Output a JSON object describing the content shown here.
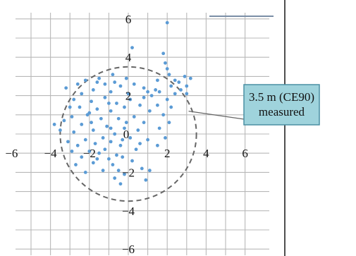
{
  "chart_data": {
    "type": "scatter",
    "title": "",
    "xlabel": "",
    "ylabel": "",
    "xlim": [
      -6,
      6
    ],
    "ylim": [
      -6,
      6
    ],
    "x_ticks": [
      -6,
      -4,
      -2,
      0,
      2,
      4,
      6
    ],
    "y_ticks": [
      -6,
      -4,
      -2,
      0,
      2,
      4,
      6
    ],
    "x_tick_labels": [
      "−6",
      "−4",
      "−2",
      "0",
      "2",
      "4",
      "6"
    ],
    "y_tick_labels": [
      "−6",
      "−4",
      "−2",
      "0",
      "2",
      "4",
      "6"
    ],
    "grid": true,
    "point_color": "#5b9bd5",
    "circle": {
      "center": [
        0,
        0
      ],
      "radius": 3.5,
      "style": "dashed",
      "color": "#666666"
    },
    "annotation": {
      "lines": [
        "3.5 m (CE90)",
        "measured"
      ],
      "box_fill": "#9fd3dc",
      "box_border": "#4a8fa3",
      "points_to": [
        3.1,
        1.3
      ]
    },
    "points": [
      {
        "x": 2.0,
        "y": 5.8
      },
      {
        "x": 0.2,
        "y": 4.5
      },
      {
        "x": 1.8,
        "y": 4.2
      },
      {
        "x": 1.9,
        "y": 3.7
      },
      {
        "x": 2.0,
        "y": 3.4
      },
      {
        "x": 2.1,
        "y": 3.1
      },
      {
        "x": 2.9,
        "y": 3.0
      },
      {
        "x": 3.2,
        "y": 2.9
      },
      {
        "x": 2.4,
        "y": 2.8
      },
      {
        "x": 2.6,
        "y": 2.7
      },
      {
        "x": 1.5,
        "y": 2.8
      },
      {
        "x": 2.2,
        "y": 2.5
      },
      {
        "x": 3.0,
        "y": 2.5
      },
      {
        "x": 2.7,
        "y": 2.3
      },
      {
        "x": 1.4,
        "y": 2.3
      },
      {
        "x": 0.8,
        "y": 2.4
      },
      {
        "x": 1.0,
        "y": 2.2
      },
      {
        "x": 1.6,
        "y": 2.2
      },
      {
        "x": 2.4,
        "y": 2.1
      },
      {
        "x": 3.0,
        "y": 2.1
      },
      {
        "x": 1.2,
        "y": 2.0
      },
      {
        "x": 2.0,
        "y": 1.8
      },
      {
        "x": 1.5,
        "y": 1.5
      },
      {
        "x": 2.2,
        "y": 1.4
      },
      {
        "x": 1.8,
        "y": 1.0
      },
      {
        "x": 1.1,
        "y": 1.2
      },
      {
        "x": 2.1,
        "y": 0.6
      },
      {
        "x": 1.6,
        "y": 0.3
      },
      {
        "x": 1.9,
        "y": -0.2
      },
      {
        "x": 1.5,
        "y": -0.6
      },
      {
        "x": 1.0,
        "y": -0.3
      },
      {
        "x": 0.8,
        "y": 0.6
      },
      {
        "x": 0.6,
        "y": 1.5
      },
      {
        "x": 0.3,
        "y": 2.6
      },
      {
        "x": -0.1,
        "y": 2.9
      },
      {
        "x": -0.8,
        "y": 3.1
      },
      {
        "x": -0.4,
        "y": 2.5
      },
      {
        "x": 0.1,
        "y": 1.8
      },
      {
        "x": -0.2,
        "y": 1.4
      },
      {
        "x": 0.3,
        "y": 0.9
      },
      {
        "x": 0.5,
        "y": 0.2
      },
      {
        "x": 0.1,
        "y": -0.2
      },
      {
        "x": -0.2,
        "y": 0.3
      },
      {
        "x": -0.5,
        "y": 0.8
      },
      {
        "x": -0.6,
        "y": 1.6
      },
      {
        "x": -0.9,
        "y": 2.2
      },
      {
        "x": -1.2,
        "y": 2.6
      },
      {
        "x": -1.5,
        "y": 2.9
      },
      {
        "x": -2.2,
        "y": 2.8
      },
      {
        "x": -2.6,
        "y": 2.6
      },
      {
        "x": -3.2,
        "y": 2.4
      },
      {
        "x": -1.8,
        "y": 2.3
      },
      {
        "x": -2.4,
        "y": 2.1
      },
      {
        "x": -1.2,
        "y": 1.9
      },
      {
        "x": -1.9,
        "y": 1.7
      },
      {
        "x": -2.8,
        "y": 1.8
      },
      {
        "x": -3.0,
        "y": 1.4
      },
      {
        "x": -2.5,
        "y": 1.4
      },
      {
        "x": -1.6,
        "y": 1.3
      },
      {
        "x": -0.9,
        "y": 1.2
      },
      {
        "x": -2.1,
        "y": 1.0
      },
      {
        "x": -2.9,
        "y": 0.9
      },
      {
        "x": -3.3,
        "y": 0.7
      },
      {
        "x": -1.4,
        "y": 0.8
      },
      {
        "x": -2.4,
        "y": 0.5
      },
      {
        "x": -1.1,
        "y": 0.4
      },
      {
        "x": -3.8,
        "y": 0.5
      },
      {
        "x": -3.5,
        "y": 0.2
      },
      {
        "x": -2.8,
        "y": 0.1
      },
      {
        "x": -1.8,
        "y": 0.2
      },
      {
        "x": -0.7,
        "y": 0.0
      },
      {
        "x": -1.3,
        "y": -0.2
      },
      {
        "x": -2.2,
        "y": -0.3
      },
      {
        "x": -3.1,
        "y": -0.4
      },
      {
        "x": -2.6,
        "y": -0.6
      },
      {
        "x": -1.7,
        "y": -0.5
      },
      {
        "x": -0.9,
        "y": -0.4
      },
      {
        "x": -0.4,
        "y": -0.6
      },
      {
        "x": -1.2,
        "y": -0.8
      },
      {
        "x": -2.0,
        "y": -0.9
      },
      {
        "x": -1.5,
        "y": -1.0
      },
      {
        "x": -0.6,
        "y": -1.1
      },
      {
        "x": -2.4,
        "y": -1.2
      },
      {
        "x": -1.0,
        "y": -1.3
      },
      {
        "x": -0.3,
        "y": -1.2
      },
      {
        "x": -1.8,
        "y": -1.5
      },
      {
        "x": -0.8,
        "y": -1.6
      },
      {
        "x": -2.7,
        "y": -1.6
      },
      {
        "x": -0.5,
        "y": -1.9
      },
      {
        "x": -1.3,
        "y": -1.9
      },
      {
        "x": -2.2,
        "y": -2.0
      },
      {
        "x": -0.2,
        "y": -2.1
      },
      {
        "x": -0.7,
        "y": -2.3
      },
      {
        "x": -0.4,
        "y": -2.6
      },
      {
        "x": 0.7,
        "y": -1.8
      },
      {
        "x": 1.1,
        "y": -1.9
      },
      {
        "x": 0.9,
        "y": -2.4
      },
      {
        "x": 0.4,
        "y": -0.8
      },
      {
        "x": 0.2,
        "y": -1.4
      },
      {
        "x": 0.6,
        "y": -0.5
      },
      {
        "x": -0.1,
        "y": 0.6
      },
      {
        "x": -1.6,
        "y": 2.7
      },
      {
        "x": -0.7,
        "y": 2.7
      },
      {
        "x": -2.0,
        "y": 1.1
      },
      {
        "x": -1.0,
        "y": 1.6
      },
      {
        "x": 0.0,
        "y": 2.1
      },
      {
        "x": 0.8,
        "y": 1.9
      },
      {
        "x": -0.3,
        "y": -0.3
      },
      {
        "x": -2.9,
        "y": -0.9
      },
      {
        "x": -1.6,
        "y": -1.3
      },
      {
        "x": -0.9,
        "y": 0.3
      },
      {
        "x": -1.9,
        "y": 0.6
      }
    ]
  }
}
